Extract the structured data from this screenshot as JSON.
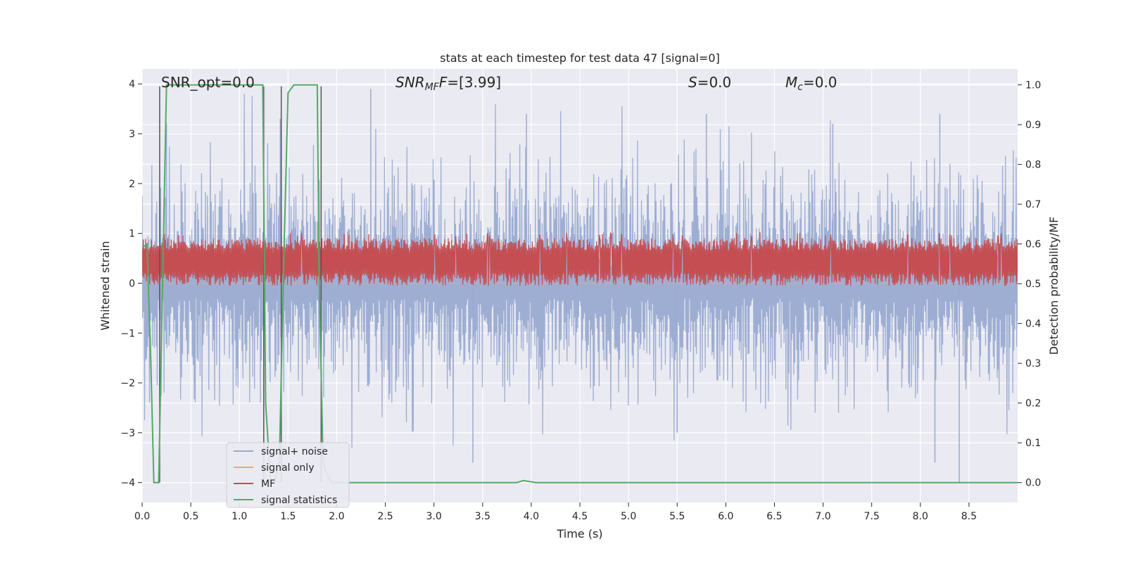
{
  "chart_data": {
    "type": "line",
    "title": "stats at each timestep for test data 47 [signal=0]",
    "xlabel": "Time (s)",
    "ylabel": "Whitened strain",
    "ylabel_right": "Detection probability/MF",
    "xlim": [
      0.0,
      9.0
    ],
    "ylim": [
      -4.4,
      4.3
    ],
    "ylim_right": [
      -0.05,
      1.04
    ],
    "x_ticks": [
      "0.0",
      "0.5",
      "1.0",
      "1.5",
      "2.0",
      "2.5",
      "3.0",
      "3.5",
      "4.0",
      "4.5",
      "5.0",
      "5.5",
      "6.0",
      "6.5",
      "7.0",
      "7.5",
      "8.0",
      "8.5"
    ],
    "y_ticks": [
      "−4",
      "−3",
      "−2",
      "−1",
      "0",
      "1",
      "2",
      "3",
      "4"
    ],
    "y_ticks_right": [
      "0.0",
      "0.1",
      "0.2",
      "0.3",
      "0.4",
      "0.5",
      "0.6",
      "0.7",
      "0.8",
      "0.9",
      "1.0"
    ],
    "grid": true,
    "legend_position": "lower-left",
    "annotations": {
      "snr_opt": "SNR_opt=0.0",
      "snr_mf_main": "SNR",
      "snr_mf_sub": "MF",
      "snr_mf_rest": "=[3.99]",
      "s_main": "S",
      "s_rest": "=0.0",
      "mc_main": "M",
      "mc_sub": "c",
      "mc_rest": "=0.0"
    },
    "colors": {
      "plot_bg": "#eaeaf2",
      "grid": "#ffffff",
      "signal_noise": "#9aabd1",
      "signal_only": "#e8a58e",
      "mf": "#c44e52",
      "signal_statistics": "#55a868",
      "markers": "#555555"
    },
    "series": [
      {
        "name": "signal+ noise",
        "axis": "left",
        "style": "dense-noise",
        "t_range": [
          0.0,
          9.0
        ],
        "typical_envelope": [
          -2.4,
          2.4
        ],
        "peak_max": 4.0,
        "peak_min": -4.0,
        "notable_extremes": [
          {
            "t": 0.25,
            "y": 3.2
          },
          {
            "t": 1.42,
            "y": 3.3
          },
          {
            "t": 2.35,
            "y": 3.9
          },
          {
            "t": 3.95,
            "y": 3.4
          },
          {
            "t": 5.8,
            "y": 3.4
          },
          {
            "t": 7.1,
            "y": 3.2
          },
          {
            "t": 8.2,
            "y": 3.4
          },
          {
            "t": 3.4,
            "y": -3.6
          },
          {
            "t": 5.5,
            "y": -3.0
          },
          {
            "t": 8.15,
            "y": -3.6
          },
          {
            "t": 8.4,
            "y": -4.0
          }
        ]
      },
      {
        "name": "signal only",
        "axis": "left",
        "style": "line",
        "x": [
          0.0,
          9.0
        ],
        "y": [
          0.0,
          0.0
        ]
      },
      {
        "name": "MF",
        "axis": "right",
        "style": "dense-band",
        "t_range": [
          0.0,
          9.0
        ],
        "band": [
          0.51,
          0.6
        ],
        "peak_max": 0.63
      },
      {
        "name": "signal statistics",
        "axis": "right",
        "style": "line",
        "x": [
          0.0,
          0.05,
          0.09,
          0.12,
          0.17,
          0.21,
          0.25,
          0.3,
          1.24,
          1.27,
          1.32,
          1.36,
          1.41,
          1.46,
          1.5,
          1.56,
          1.8,
          1.82,
          1.86,
          1.9,
          1.95,
          2.1,
          3.85,
          3.92,
          4.05,
          9.0
        ],
        "y": [
          0.59,
          0.6,
          0.3,
          0.0,
          0.0,
          0.5,
          1.0,
          1.0,
          1.0,
          0.2,
          0.0,
          0.0,
          0.05,
          0.6,
          0.98,
          1.0,
          1.0,
          0.5,
          0.05,
          0.02,
          0.0,
          0.0,
          0.0,
          0.005,
          0.0,
          0.0
        ]
      }
    ],
    "marker_lines_t": [
      0.18,
      1.25,
      1.43,
      1.84
    ]
  }
}
